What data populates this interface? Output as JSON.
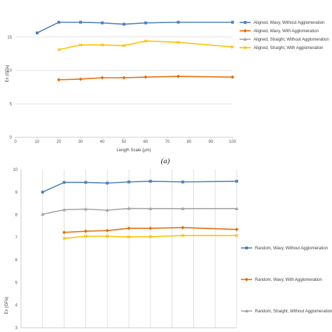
{
  "chart_data": [
    {
      "type": "line",
      "title": "",
      "xlabel": "Length Scale (μm)",
      "ylabel": "Ex (GPa)",
      "xlim": [
        0,
        100
      ],
      "ylim": [
        0,
        20
      ],
      "x_ticks": [
        "0",
        "10",
        "20",
        "30",
        "40",
        "50",
        "60",
        "70",
        "80",
        "90",
        "100"
      ],
      "y_ticks": [
        "0",
        "5",
        "10",
        "15"
      ],
      "grid": "horizontal",
      "legend": "right",
      "caption": "(a)",
      "series": [
        {
          "name": "Aligned, Wavy, Without Agglomeration",
          "color": "#4f81bd",
          "marker": "square",
          "x": [
            10,
            20,
            30,
            40,
            50,
            60,
            75,
            100
          ],
          "y": [
            15.6,
            17.2,
            17.2,
            17.1,
            16.9,
            17.1,
            17.2,
            17.2
          ]
        },
        {
          "name": "Aligned, Wavy, With Agglomeration",
          "color": "#e46c0a",
          "marker": "diamond",
          "x": [
            20,
            30,
            40,
            50,
            60,
            75,
            100
          ],
          "y": [
            8.6,
            8.7,
            8.9,
            8.9,
            9.0,
            9.1,
            9.0
          ]
        },
        {
          "name": "Aligned, Straight, Without Agglomeration",
          "color": "#a5a5a5",
          "marker": "triangle",
          "x": [],
          "y": []
        },
        {
          "name": "Aligned, Straight, With Agglomeration",
          "color": "#ffc000",
          "marker": "x",
          "x": [
            20,
            30,
            40,
            50,
            60,
            75,
            100
          ],
          "y": [
            13.1,
            13.8,
            13.8,
            13.7,
            14.4,
            14.2,
            13.5
          ]
        }
      ]
    },
    {
      "type": "line",
      "title": "",
      "xlabel": "",
      "ylabel": "Ex (GPa)",
      "xlim": [
        0,
        100
      ],
      "ylim": [
        3,
        10
      ],
      "y_ticks": [
        "3",
        "4",
        "5",
        "6",
        "7",
        "8",
        "9",
        "10"
      ],
      "grid": "vertical",
      "legend": "right",
      "series": [
        {
          "name": "Random, Wavy, Without Agglomeration",
          "color": "#4f81bd",
          "marker": "square",
          "x": [
            10,
            20,
            30,
            40,
            50,
            60,
            75,
            100
          ],
          "y": [
            9.0,
            9.43,
            9.43,
            9.4,
            9.45,
            9.48,
            9.45,
            9.48
          ]
        },
        {
          "name": "Random, Wavy, With Agglomeration",
          "color": "#e46c0a",
          "marker": "diamond",
          "x": [
            20,
            30,
            40,
            50,
            60,
            75,
            100
          ],
          "y": [
            7.22,
            7.27,
            7.3,
            7.4,
            7.4,
            7.43,
            7.35
          ]
        },
        {
          "name": "Random, Straight, Without Agglomeration",
          "color": "#a5a5a5",
          "marker": "triangle",
          "x": [
            10,
            20,
            30,
            40,
            50,
            60,
            75,
            100
          ],
          "y": [
            8.02,
            8.22,
            8.25,
            8.2,
            8.28,
            8.27,
            8.27,
            8.27
          ]
        },
        {
          "name": "",
          "color": "#ffc000",
          "marker": "x",
          "x": [
            20,
            30,
            40,
            50,
            60,
            75,
            100
          ],
          "y": [
            6.95,
            7.05,
            7.05,
            7.02,
            7.03,
            7.08,
            7.08
          ]
        }
      ]
    }
  ]
}
